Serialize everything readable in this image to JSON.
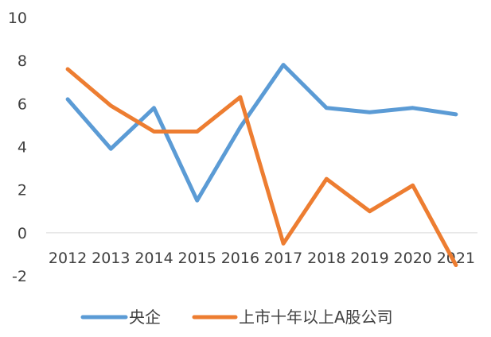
{
  "chart_data": {
    "type": "line",
    "categories": [
      "2012",
      "2013",
      "2014",
      "2015",
      "2016",
      "2017",
      "2018",
      "2019",
      "2020",
      "2021"
    ],
    "series": [
      {
        "name": "央企",
        "color": "#5B9BD5",
        "values": [
          6.2,
          3.9,
          5.8,
          1.5,
          4.9,
          7.8,
          5.8,
          5.6,
          5.8,
          5.5
        ]
      },
      {
        "name": "上市十年以上A股公司",
        "color": "#ED7D31",
        "values": [
          7.6,
          5.9,
          4.7,
          4.7,
          6.3,
          -0.5,
          2.5,
          1.0,
          2.2,
          -1.5
        ]
      }
    ],
    "ylim": [
      -2,
      10
    ],
    "yticks": [
      -2,
      0,
      2,
      4,
      6,
      8,
      10
    ],
    "title": "",
    "xlabel": "",
    "ylabel": "",
    "grid": false,
    "legend_position": "bottom"
  }
}
